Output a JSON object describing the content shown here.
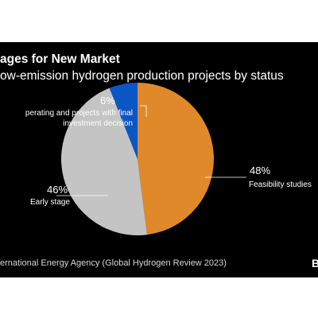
{
  "chart_data": {
    "type": "pie",
    "title": "ages for New Market",
    "subtitle": "ow-emission hydrogen production projects by status",
    "slices": [
      {
        "label": "Feasibility studies",
        "value": 48,
        "value_label": "48%",
        "color": "#e0892a"
      },
      {
        "label": "Early stage",
        "value": 46,
        "value_label": "46%",
        "color": "#c4c4c4"
      },
      {
        "label": [
          "perating and projects with final",
          "investment decision"
        ],
        "value": 6,
        "value_label": "6%",
        "color": "#0a56c4"
      }
    ],
    "source": "ernational Energy Agency (Global Hydrogen Review 2023)",
    "logo_text": "B"
  },
  "colors": {
    "background": "#000000",
    "text": "#ffffff",
    "leader": "#ffffff"
  }
}
